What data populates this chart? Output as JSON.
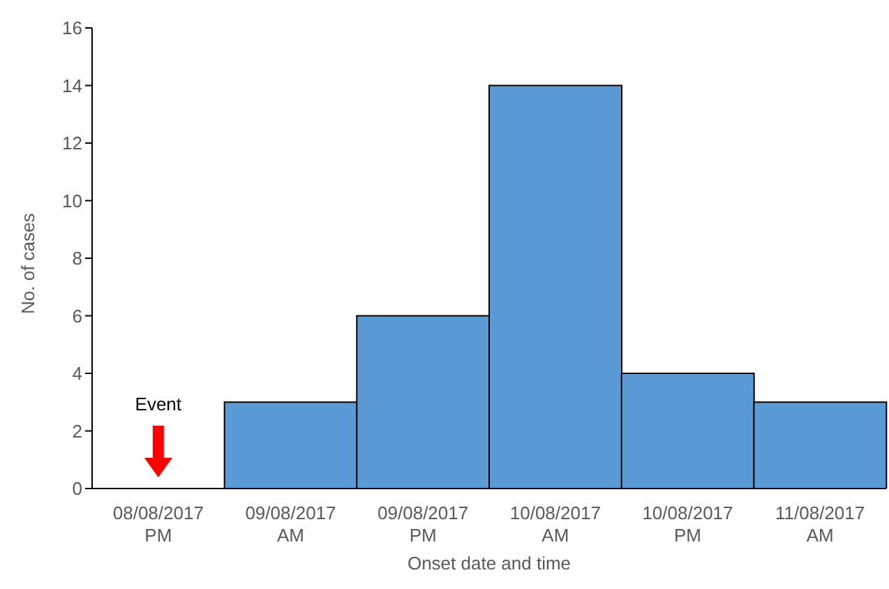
{
  "chart_data": {
    "type": "bar",
    "categories": [
      "08/08/2017 PM",
      "09/08/2017 AM",
      "09/08/2017 PM",
      "10/08/2017 AM",
      "10/08/2017 PM",
      "11/08/2017 AM"
    ],
    "values": [
      0,
      3,
      6,
      14,
      4,
      3
    ],
    "color": "#5b9bd5",
    "xlabel": "Onset date and time",
    "ylabel": "No. of cases",
    "ylim": [
      0,
      16
    ],
    "yticks": [
      0,
      2,
      4,
      6,
      8,
      10,
      12,
      14,
      16
    ],
    "grid": false,
    "annotations": [
      "Event"
    ]
  }
}
